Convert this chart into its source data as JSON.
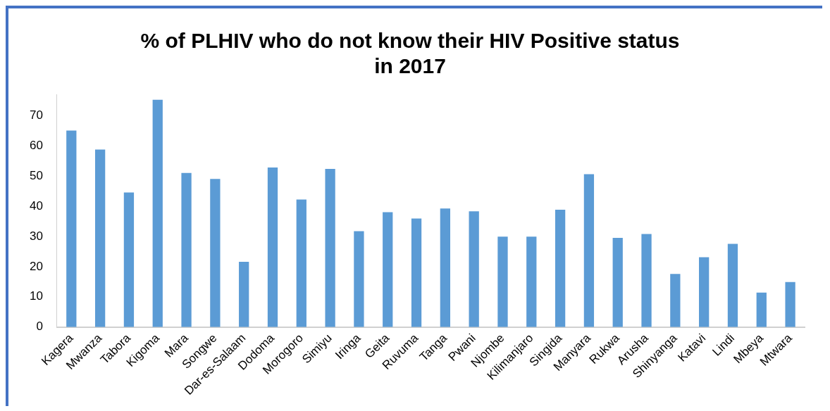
{
  "chart_data": {
    "type": "bar",
    "title": "% of PLHIV who do not know their HIV Positive status\nin 2017",
    "categories": [
      "Kagera",
      "Mwanza",
      "Tabora",
      "Kigoma",
      "Mara",
      "Songwe",
      "Dar-es-Salaam",
      "Dodoma",
      "Morogoro",
      "Simiyu",
      "Iringa",
      "Geita",
      "Ruvuma",
      "Tanga",
      "Pwani",
      "Njombe",
      "Kilimanjaro",
      "Singida",
      "Manyara",
      "Rukwa",
      "Arusha",
      "Shinyanga",
      "Katavi",
      "Lindi",
      "Mbeya",
      "Mtwara"
    ],
    "values": [
      65,
      58.7,
      44.5,
      75.2,
      51,
      49,
      21.6,
      52.8,
      42.2,
      52.3,
      31.7,
      38,
      35.9,
      39.2,
      38.3,
      29.9,
      29.9,
      38.8,
      50.6,
      29.5,
      30.8,
      17.6,
      23.1,
      27.5,
      11.4,
      14.9
    ],
    "color": "#5b9bd5",
    "ylim": [
      0,
      77
    ],
    "yticks": [
      0,
      10,
      20,
      30,
      40,
      50,
      60,
      70
    ],
    "grid": false,
    "legend": false
  }
}
